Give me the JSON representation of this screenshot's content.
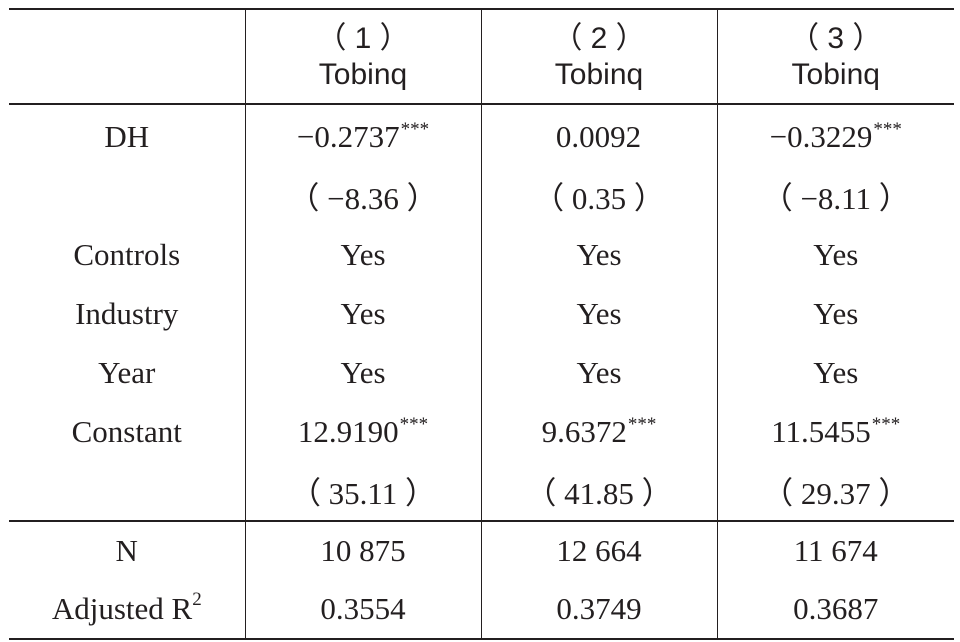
{
  "table": {
    "header": {
      "corner": "",
      "columns": [
        {
          "number": "（ 1 ）",
          "dependent": "Tobinq"
        },
        {
          "number": "（ 2 ）",
          "dependent": "Tobinq"
        },
        {
          "number": "（ 3 ）",
          "dependent": "Tobinq"
        }
      ]
    },
    "rows": [
      {
        "label": "DH",
        "cells": [
          {
            "value": "−0.2737",
            "stars": "***"
          },
          {
            "value": "0.0092",
            "stars": ""
          },
          {
            "value": "−0.3229",
            "stars": "***"
          }
        ]
      },
      {
        "label": "",
        "cells": [
          {
            "value": "（ −8.36 ）",
            "stars": ""
          },
          {
            "value": "（ 0.35 ）",
            "stars": ""
          },
          {
            "value": "（ −8.11 ）",
            "stars": ""
          }
        ]
      },
      {
        "label": "Controls",
        "cells": [
          {
            "value": "Yes",
            "stars": ""
          },
          {
            "value": "Yes",
            "stars": ""
          },
          {
            "value": "Yes",
            "stars": ""
          }
        ]
      },
      {
        "label": "Industry",
        "cells": [
          {
            "value": "Yes",
            "stars": ""
          },
          {
            "value": "Yes",
            "stars": ""
          },
          {
            "value": "Yes",
            "stars": ""
          }
        ]
      },
      {
        "label": "Year",
        "cells": [
          {
            "value": "Yes",
            "stars": ""
          },
          {
            "value": "Yes",
            "stars": ""
          },
          {
            "value": "Yes",
            "stars": ""
          }
        ]
      },
      {
        "label": "Constant",
        "cells": [
          {
            "value": "12.9190",
            "stars": "***"
          },
          {
            "value": "9.6372",
            "stars": "***"
          },
          {
            "value": "11.5455",
            "stars": "***"
          }
        ]
      },
      {
        "label": "",
        "cells": [
          {
            "value": "（ 35.11 ）",
            "stars": ""
          },
          {
            "value": "（ 41.85 ）",
            "stars": ""
          },
          {
            "value": "（ 29.37 ）",
            "stars": ""
          }
        ]
      }
    ],
    "stats": [
      {
        "label": "N",
        "label_sup": "",
        "cells": [
          "10 875",
          "12 664",
          "11 674"
        ]
      },
      {
        "label": "Adjusted R",
        "label_sup": "2",
        "cells": [
          "0.3554",
          "0.3749",
          "0.3687"
        ]
      }
    ]
  }
}
